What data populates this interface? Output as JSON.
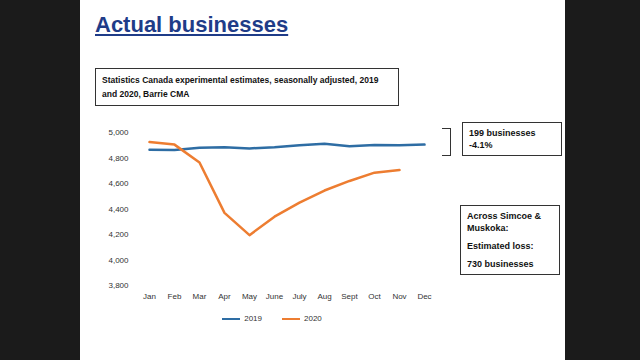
{
  "chart_data": {
    "type": "line",
    "title": "Actual businesses",
    "subtitle": "Statistics Canada experimental estimates, seasonally adjusted, 2019 and 2020, Barrie CMA",
    "categories": [
      "Jan",
      "Feb",
      "Mar",
      "Apr",
      "May",
      "June",
      "July",
      "Aug",
      "Sept",
      "Oct",
      "Nov",
      "Dec"
    ],
    "series": [
      {
        "name": "2019",
        "color": "#2e6da4",
        "values": [
          4865,
          4862,
          4880,
          4885,
          4875,
          4885,
          4900,
          4912,
          4893,
          4902,
          4900,
          4905
        ]
      },
      {
        "name": "2020",
        "color": "#ed7d31",
        "values": [
          4925,
          4905,
          4765,
          4370,
          4195,
          4340,
          4450,
          4545,
          4620,
          4685,
          4705,
          null
        ]
      }
    ],
    "ylim": [
      3800,
      5000
    ],
    "yticks": [
      {
        "value": 3800,
        "label": "3,800"
      },
      {
        "value": 4000,
        "label": "4,000"
      },
      {
        "value": 4200,
        "label": "4,200"
      },
      {
        "value": 4400,
        "label": "4,400"
      },
      {
        "value": 4600,
        "label": "4,600"
      },
      {
        "value": 4800,
        "label": "4,800"
      },
      {
        "value": 5000,
        "label": "5,000"
      }
    ],
    "grid": false,
    "legend": "bottom",
    "annotations": [
      {
        "lines": [
          "199 businesses",
          "-4.1%"
        ]
      },
      {
        "lines": [
          "Across Simcoe & Muskoka:",
          "Estimated loss:",
          "730 businesses"
        ]
      }
    ]
  }
}
